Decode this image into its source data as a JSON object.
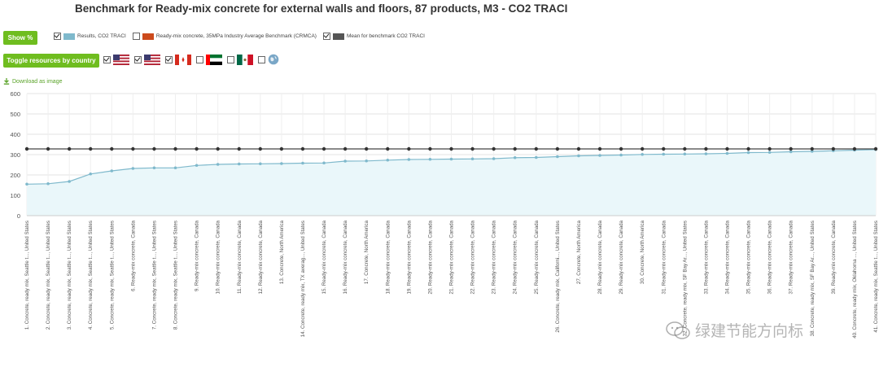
{
  "chart_data": {
    "type": "line",
    "title": "Benchmark for Ready-mix concrete for external walls and floors, 87 products, M3 - CO2 TRACI",
    "xlabel": "",
    "ylabel": "",
    "ylim": [
      0,
      600
    ],
    "yticks": [
      0,
      100,
      200,
      300,
      400,
      500,
      600
    ],
    "grid": true,
    "legend_position": "top-left",
    "categories": [
      "1. Concrete, ready mix, Seattle t..., United States",
      "2. Concrete, ready mix, Seattle t..., United States",
      "3. Concrete, ready mix, Seattle t..., United States",
      "4. Concrete, ready mix, Seattle t..., United States",
      "5. Concrete, ready mix, Seattle t..., United States",
      "6. Ready-mix concrete, Canada",
      "7. Concrete, ready mix, Seattle t..., United States",
      "8. Concrete, ready mix, Seattle t..., United States",
      "9. Ready-mix concrete, Canada",
      "10. Ready-mix concrete, Canada",
      "11. Ready-mix concrete, Canada",
      "12. Ready-mix concrete, Canada",
      "13. Concrete, North America",
      "14. Concrete, ready mix, TX averag..., United States",
      "15. Ready-mix concrete, Canada",
      "16. Ready-mix concrete, Canada",
      "17. Concrete, North America",
      "18. Ready-mix concrete, Canada",
      "19. Ready-mix concrete, Canada",
      "20. Ready-mix concrete, Canada",
      "21. Ready-mix concrete, Canada",
      "22. Ready-mix concrete, Canada",
      "23. Ready-mix concrete, Canada",
      "24. Ready-mix concrete, Canada",
      "25. Ready-mix concrete, Canada",
      "26. Concrete, ready mix, Californi..., United States",
      "27. Concrete, North America",
      "28. Ready-mix concrete, Canada",
      "29. Ready-mix concrete, Canada",
      "30. Concrete, North America",
      "31. Ready-mix concrete, Canada",
      "32. Concrete, ready mix, SF Bay Ar..., United States",
      "33. Ready-mix concrete, Canada",
      "34. Ready-mix concrete, Canada",
      "35. Ready-mix concrete, Canada",
      "36. Ready-mix concrete, Canada",
      "37. Ready-mix concrete, Canada",
      "38. Concrete, ready mix, SF Bay Ar..., United States",
      "39. Ready-mix concrete, Canada",
      "40. Concrete, ready mix, Oklahoma ..., United States",
      "41. Concrete, ready mix, Seattle t..., United States"
    ],
    "series": [
      {
        "name": "Results, CO2 TRACI",
        "color": "#7fb9cc",
        "fill": "#eaf7fa",
        "values": [
          155,
          157,
          168,
          205,
          220,
          232,
          235,
          235,
          247,
          252,
          254,
          255,
          256,
          258,
          259,
          268,
          269,
          273,
          276,
          277,
          278,
          279,
          280,
          285,
          286,
          290,
          294,
          296,
          298,
          301,
          302,
          303,
          304,
          306,
          310,
          311,
          314,
          316,
          319,
          322,
          325
        ]
      },
      {
        "name": "Mean for benchmark CO2 TRACI",
        "color": "#444444",
        "values": [
          328,
          328,
          328,
          328,
          328,
          328,
          328,
          328,
          328,
          328,
          328,
          328,
          328,
          328,
          328,
          328,
          328,
          328,
          328,
          328,
          328,
          328,
          328,
          328,
          328,
          328,
          328,
          328,
          328,
          328,
          328,
          328,
          328,
          328,
          328,
          328,
          328,
          328,
          328,
          328,
          328
        ]
      }
    ],
    "legend": [
      {
        "label": "Results, CO2 TRACI",
        "color": "#7fb9cc",
        "checked": true
      },
      {
        "label": "Ready-mix concrete, 35MPa Industry Average Benchmark (CRMCA)",
        "color": "#cc4a1c",
        "checked": false
      },
      {
        "label": "Mean for benchmark CO2 TRACI",
        "color": "#555555",
        "checked": true
      }
    ]
  },
  "controls": {
    "show_percent_label": "Show %",
    "toggle_resources_label": "Toggle resources by country",
    "download_label": "Download as image",
    "flags": [
      {
        "icon": "us-flag-icon",
        "checked": true
      },
      {
        "icon": "us-flag-icon",
        "checked": true
      },
      {
        "icon": "canada-flag-icon",
        "checked": true
      },
      {
        "icon": "uae-flag-icon",
        "checked": false
      },
      {
        "icon": "mexico-flag-icon",
        "checked": false
      },
      {
        "icon": "globe-icon",
        "checked": false
      }
    ]
  },
  "watermark": {
    "text": "绿建节能方向标"
  }
}
